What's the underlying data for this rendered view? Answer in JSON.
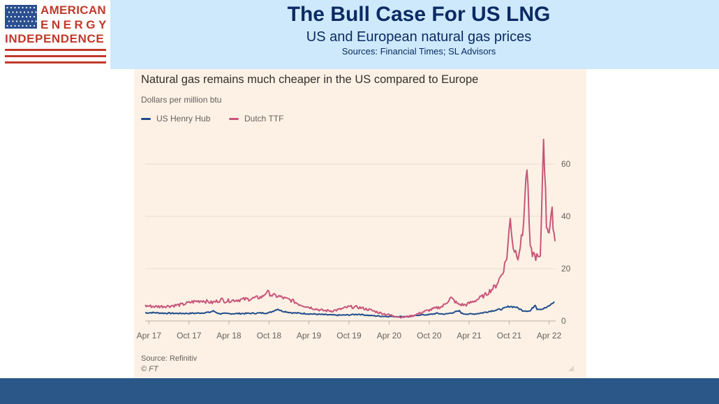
{
  "logo": {
    "line1": "AMERICAN",
    "line2": "ENERGY",
    "line3": "INDEPENDENCE",
    "flag_icon": "us-flag-icon",
    "brand_red": "#c0392b",
    "flag_blue": "#2b4f8f"
  },
  "header": {
    "title": "The Bull Case For US LNG",
    "subtitle": "US and European natural gas prices",
    "sources": "Sources: Financial Times; SL Advisors",
    "band_color": "#cde9fb",
    "text_color": "#0c2a63"
  },
  "chart": {
    "heading": "Natural gas remains much cheaper in the US compared to Europe",
    "unit_label": "Dollars per million btu",
    "source": "Source: Refinitiv",
    "credit": "© FT",
    "panel_color": "#fdf1e5"
  },
  "chart_data": {
    "type": "line",
    "title": "Natural gas remains much cheaper in the US compared to Europe",
    "ylabel": "Dollars per million btu",
    "xlabel": "",
    "x_tick_labels": [
      "Apr 17",
      "Oct 17",
      "Apr 18",
      "Oct 18",
      "Apr 19",
      "Oct 19",
      "Apr 20",
      "Oct 20",
      "Apr 21",
      "Oct 21",
      "Apr 22"
    ],
    "y_ticks": [
      0,
      20,
      40,
      60
    ],
    "ylim": [
      0,
      75
    ],
    "xlim": [
      "2017-03-15",
      "2022-05-01"
    ],
    "y_axis_side": "right",
    "grid": "horizontal",
    "legend_position": "top-left",
    "series": [
      {
        "name": "US Henry Hub",
        "color": "#1f4d8a",
        "points": [
          [
            "2017-03-15",
            3.1
          ],
          [
            "2017-04-15",
            3.2
          ],
          [
            "2017-06-01",
            3.0
          ],
          [
            "2017-08-01",
            2.9
          ],
          [
            "2017-10-01",
            2.9
          ],
          [
            "2017-11-15",
            3.0
          ],
          [
            "2018-01-01",
            3.3
          ],
          [
            "2018-01-20",
            3.8
          ],
          [
            "2018-02-15",
            2.8
          ],
          [
            "2018-04-15",
            2.8
          ],
          [
            "2018-07-01",
            2.9
          ],
          [
            "2018-10-01",
            3.1
          ],
          [
            "2018-11-10",
            4.6
          ],
          [
            "2018-11-25",
            3.9
          ],
          [
            "2018-12-20",
            3.5
          ],
          [
            "2019-01-15",
            3.1
          ],
          [
            "2019-03-01",
            2.9
          ],
          [
            "2019-05-01",
            2.6
          ],
          [
            "2019-08-01",
            2.2
          ],
          [
            "2019-10-01",
            2.3
          ],
          [
            "2019-11-15",
            2.6
          ],
          [
            "2020-01-01",
            2.1
          ],
          [
            "2020-03-01",
            1.8
          ],
          [
            "2020-05-01",
            1.7
          ],
          [
            "2020-07-01",
            1.7
          ],
          [
            "2020-08-15",
            2.3
          ],
          [
            "2020-10-01",
            2.4
          ],
          [
            "2020-11-01",
            2.9
          ],
          [
            "2020-12-15",
            2.6
          ],
          [
            "2021-02-16",
            3.8
          ],
          [
            "2021-03-01",
            2.8
          ],
          [
            "2021-04-15",
            2.6
          ],
          [
            "2021-06-01",
            3.1
          ],
          [
            "2021-07-15",
            3.9
          ],
          [
            "2021-09-01",
            4.6
          ],
          [
            "2021-10-01",
            5.6
          ],
          [
            "2021-11-01",
            5.3
          ],
          [
            "2021-12-01",
            4.0
          ],
          [
            "2022-01-05",
            3.8
          ],
          [
            "2022-01-28",
            6.3
          ],
          [
            "2022-02-05",
            4.6
          ],
          [
            "2022-03-01",
            4.6
          ],
          [
            "2022-03-25",
            5.3
          ],
          [
            "2022-04-10",
            6.3
          ],
          [
            "2022-04-25",
            7.4
          ]
        ]
      },
      {
        "name": "Dutch TTF",
        "color": "#c8557a",
        "points": [
          [
            "2017-03-15",
            5.8
          ],
          [
            "2017-05-01",
            5.5
          ],
          [
            "2017-07-01",
            5.7
          ],
          [
            "2017-09-01",
            6.3
          ],
          [
            "2017-10-15",
            7.3
          ],
          [
            "2017-12-01",
            7.8
          ],
          [
            "2018-01-15",
            7.0
          ],
          [
            "2018-02-28",
            8.2
          ],
          [
            "2018-03-15",
            7.6
          ],
          [
            "2018-05-01",
            8.0
          ],
          [
            "2018-07-01",
            8.4
          ],
          [
            "2018-09-01",
            9.2
          ],
          [
            "2018-09-20",
            11.2
          ],
          [
            "2018-10-15",
            9.8
          ],
          [
            "2018-11-15",
            9.4
          ],
          [
            "2018-12-15",
            8.5
          ],
          [
            "2019-01-15",
            7.8
          ],
          [
            "2019-02-15",
            6.4
          ],
          [
            "2019-04-01",
            5.3
          ],
          [
            "2019-06-01",
            4.0
          ],
          [
            "2019-07-15",
            3.9
          ],
          [
            "2019-08-15",
            4.3
          ],
          [
            "2019-10-01",
            5.4
          ],
          [
            "2019-11-15",
            5.2
          ],
          [
            "2020-01-01",
            4.3
          ],
          [
            "2020-02-15",
            3.2
          ],
          [
            "2020-03-15",
            2.6
          ],
          [
            "2020-05-15",
            1.6
          ],
          [
            "2020-06-01",
            1.4
          ],
          [
            "2020-07-15",
            1.9
          ],
          [
            "2020-09-01",
            3.4
          ],
          [
            "2020-10-15",
            4.5
          ],
          [
            "2020-12-01",
            5.6
          ],
          [
            "2021-01-08",
            8.8
          ],
          [
            "2021-02-10",
            6.4
          ],
          [
            "2021-03-15",
            6.1
          ],
          [
            "2021-05-01",
            7.9
          ],
          [
            "2021-06-15",
            10.0
          ],
          [
            "2021-08-01",
            13.5
          ],
          [
            "2021-09-01",
            18.5
          ],
          [
            "2021-09-20",
            24.5
          ],
          [
            "2021-10-06",
            39.0
          ],
          [
            "2021-10-20",
            28.0
          ],
          [
            "2021-11-10",
            25.0
          ],
          [
            "2021-12-01",
            33.0
          ],
          [
            "2021-12-21",
            59.5
          ],
          [
            "2022-01-05",
            27.0
          ],
          [
            "2022-01-25",
            25.0
          ],
          [
            "2022-02-20",
            23.5
          ],
          [
            "2022-03-07",
            72.0
          ],
          [
            "2022-03-20",
            37.0
          ],
          [
            "2022-04-01",
            34.5
          ],
          [
            "2022-04-15",
            41.0
          ],
          [
            "2022-04-28",
            30.5
          ]
        ]
      }
    ]
  }
}
